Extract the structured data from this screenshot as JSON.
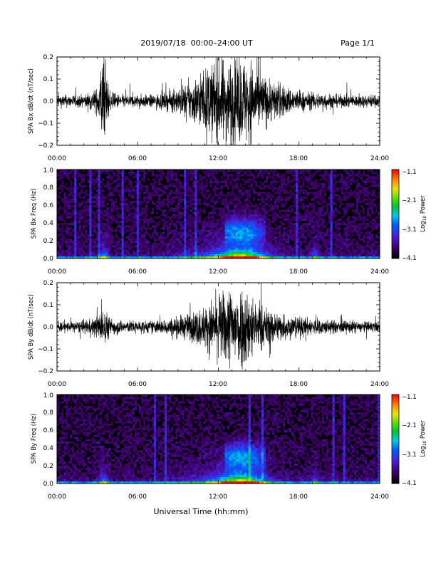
{
  "header": {
    "title": "2019/07/18  00:00–24:00 UT",
    "page": "Page 1/1"
  },
  "footer": {
    "xlabel": "Universal Time (hh:mm)"
  },
  "colors": {
    "trace": "#000000",
    "background": "#ffffff",
    "plot_bg": "#000000"
  },
  "chart_data": [
    {
      "type": "line",
      "ylabel": "SPA Bx dB/dt (nT/sec)",
      "xlim": [
        0,
        24
      ],
      "ylim": [
        -0.2,
        0.2
      ],
      "xticks": [
        "00:00",
        "06:00",
        "12:00",
        "18:00",
        "24:00"
      ],
      "yticks": [
        "−0.2",
        "−0.1",
        "0.0",
        "0.1",
        "0.2"
      ],
      "envelope": {
        "hours": [
          0,
          1,
          2,
          3,
          3.3,
          3.5,
          3.8,
          4,
          5,
          6,
          7,
          8,
          9,
          10,
          11,
          12,
          13,
          13.5,
          14,
          14.5,
          15,
          16,
          17,
          18,
          19,
          20,
          21,
          22,
          23,
          24
        ],
        "amplitude": [
          0.03,
          0.03,
          0.03,
          0.06,
          0.2,
          0.2,
          0.1,
          0.04,
          0.03,
          0.03,
          0.03,
          0.04,
          0.06,
          0.1,
          0.15,
          0.2,
          0.2,
          0.2,
          0.2,
          0.2,
          0.14,
          0.1,
          0.07,
          0.05,
          0.04,
          0.04,
          0.03,
          0.03,
          0.03,
          0.03
        ]
      }
    },
    {
      "type": "heatmap",
      "ylabel": "SPA Bx Freq (Hz)",
      "xlim": [
        0,
        24
      ],
      "ylim": [
        0.0,
        1.0
      ],
      "xticks": [
        "00:00",
        "06:00",
        "12:00",
        "18:00",
        "24:00"
      ],
      "yticks": [
        "0.0",
        "0.2",
        "0.4",
        "0.6",
        "0.8",
        "1.0"
      ],
      "colorbar": {
        "label": "Log10 Power",
        "label_main": "Log",
        "label_sub": "10",
        "label_rest": " Power",
        "range": [
          -4.1,
          -1.1
        ],
        "ticks": [
          "−1.1",
          "−2.1",
          "−3.1",
          "−4.1"
        ]
      }
    },
    {
      "type": "line",
      "ylabel": "SPA By dB/dt (nT/sec)",
      "xlim": [
        0,
        24
      ],
      "ylim": [
        -0.2,
        0.2
      ],
      "xticks": [
        "00:00",
        "06:00",
        "12:00",
        "18:00",
        "24:00"
      ],
      "yticks": [
        "−0.2",
        "−0.1",
        "0.0",
        "0.1",
        "0.2"
      ],
      "envelope": {
        "hours": [
          0,
          1,
          2,
          3,
          3.3,
          3.5,
          3.8,
          4,
          5,
          6,
          7,
          8,
          9,
          10,
          11,
          12,
          13,
          13.5,
          14,
          14.5,
          15,
          16,
          17,
          18,
          19,
          20,
          21,
          22,
          23,
          24
        ],
        "amplitude": [
          0.025,
          0.025,
          0.03,
          0.05,
          0.08,
          0.09,
          0.06,
          0.04,
          0.03,
          0.03,
          0.03,
          0.035,
          0.05,
          0.07,
          0.1,
          0.15,
          0.2,
          0.2,
          0.2,
          0.15,
          0.11,
          0.08,
          0.06,
          0.05,
          0.04,
          0.035,
          0.03,
          0.03,
          0.025,
          0.025
        ]
      }
    },
    {
      "type": "heatmap",
      "ylabel": "SPA By Freq (Hz)",
      "xlim": [
        0,
        24
      ],
      "ylim": [
        0.0,
        1.0
      ],
      "xticks": [
        "00:00",
        "06:00",
        "12:00",
        "18:00",
        "24:00"
      ],
      "yticks": [
        "0.0",
        "0.2",
        "0.4",
        "0.6",
        "0.8",
        "1.0"
      ],
      "colorbar": {
        "label": "Log10 Power",
        "label_main": "Log",
        "label_sub": "10",
        "label_rest": " Power",
        "range": [
          -4.1,
          -1.1
        ],
        "ticks": [
          "−1.1",
          "−2.1",
          "−3.1",
          "−4.1"
        ]
      }
    }
  ]
}
